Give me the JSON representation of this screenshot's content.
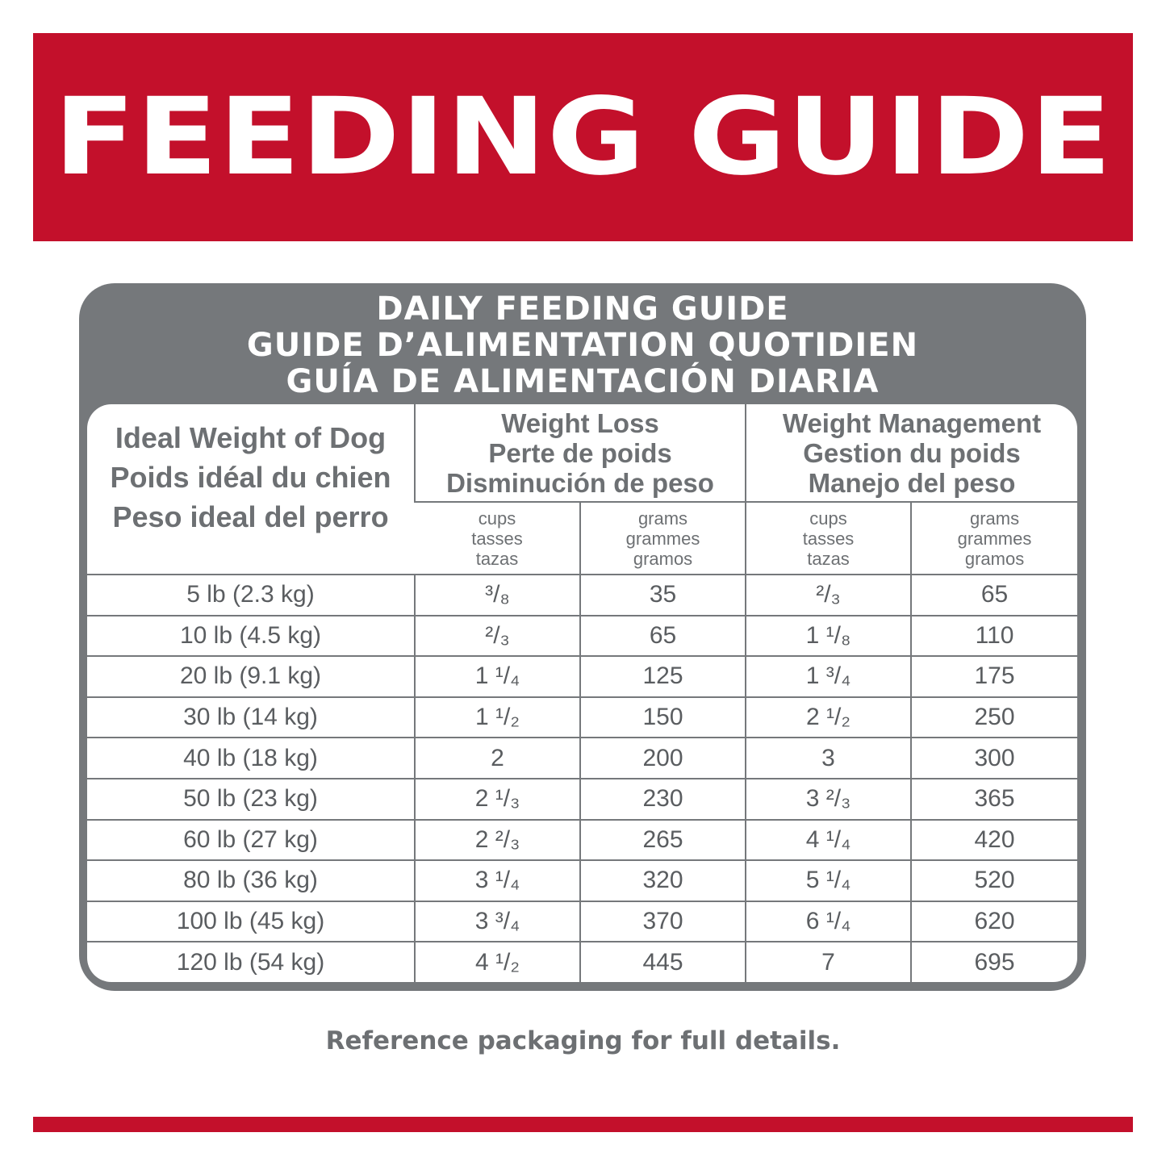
{
  "banner": {
    "title": "FEEDING GUIDE"
  },
  "panel": {
    "heading": [
      "DAILY FEEDING GUIDE",
      "GUIDE D’ALIMENTATION QUOTIDIEN",
      "GUÍA DE ALIMENTACIÓN DIARIA"
    ]
  },
  "table": {
    "weight_header": [
      "Ideal Weight of Dog",
      "Poids idéal du chien",
      "Peso ideal del perro"
    ],
    "groups": [
      {
        "title": [
          "Weight Loss",
          "Perte de poids",
          "Disminución de peso"
        ],
        "units": [
          [
            "cups",
            "tasses",
            "tazas"
          ],
          [
            "grams",
            "grammes",
            "gramos"
          ]
        ]
      },
      {
        "title": [
          "Weight Management",
          "Gestion du poids",
          "Manejo del peso"
        ],
        "units": [
          [
            "cups",
            "tasses",
            "tazas"
          ],
          [
            "grams",
            "grammes",
            "gramos"
          ]
        ]
      }
    ],
    "rows": [
      [
        "5 lb (2.3 kg)",
        "³/₈",
        "35",
        "²/₃",
        "65"
      ],
      [
        "10 lb (4.5 kg)",
        "²/₃",
        "65",
        "1 ¹/₈",
        "110"
      ],
      [
        "20 lb (9.1 kg)",
        "1 ¹/₄",
        "125",
        "1 ³/₄",
        "175"
      ],
      [
        "30 lb (14 kg)",
        "1 ¹/₂",
        "150",
        "2 ¹/₂",
        "250"
      ],
      [
        "40 lb (18 kg)",
        "2",
        "200",
        "3",
        "300"
      ],
      [
        "50 lb (23 kg)",
        "2 ¹/₃",
        "230",
        "3 ²/₃",
        "365"
      ],
      [
        "60 lb (27 kg)",
        "2 ²/₃",
        "265",
        "4 ¹/₄",
        "420"
      ],
      [
        "80 lb (36 kg)",
        "3 ¹/₄",
        "320",
        "5 ¹/₄",
        "520"
      ],
      [
        "100 lb (45 kg)",
        "3 ³/₄",
        "370",
        "6 ¹/₄",
        "620"
      ],
      [
        "120 lb (54 kg)",
        "4 ¹/₂",
        "445",
        "7",
        "695"
      ]
    ]
  },
  "footer": {
    "note": "Reference packaging for full details."
  },
  "colors": {
    "brand_red": "#c3102b",
    "panel_gray": "#75787b",
    "text_gray": "#6d7073"
  }
}
